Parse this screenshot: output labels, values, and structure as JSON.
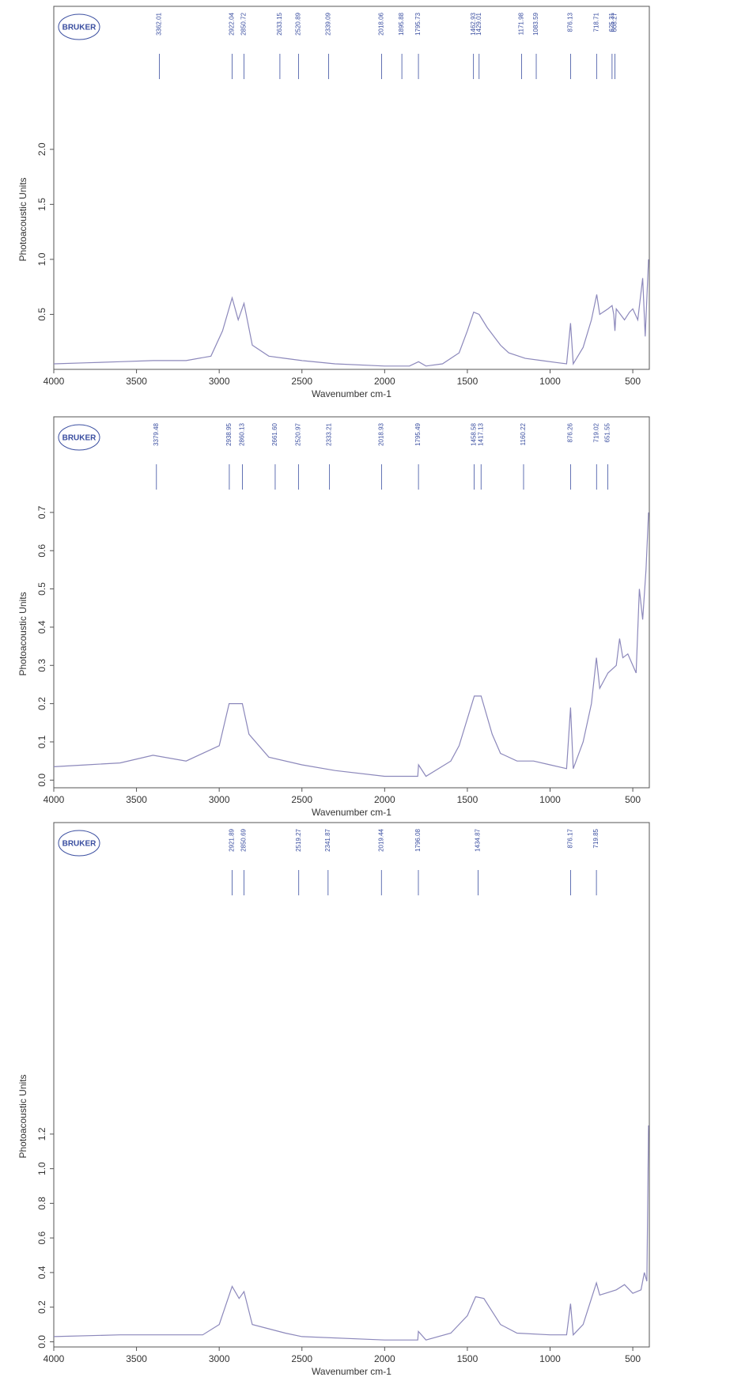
{
  "chart_data": [
    {
      "type": "line",
      "logo": "BRUKER",
      "x_label": "Wavenumber cm-1",
      "y_label": "Photoacoustic Units",
      "color": "#8c88bb",
      "peak_color": "#3a4ea0",
      "xlim": [
        4000,
        400
      ],
      "xticks": [
        4000,
        3500,
        3000,
        2500,
        2000,
        1500,
        1000,
        500
      ],
      "ylim": [
        0,
        3.3
      ],
      "yticks": [
        0.5,
        {
          "value": 1,
          "label": "1.0"
        },
        1.5,
        {
          "value": 2,
          "label": "2.0"
        }
      ],
      "peaks": [
        3362.01,
        2922.04,
        2850.72,
        2633.15,
        2520.89,
        2339.09,
        2018.06,
        1895.88,
        1795.73,
        1462.93,
        1429.01,
        1171.98,
        1083.59,
        876.13,
        718.71,
        625.31,
        608.27
      ],
      "x": [
        4000,
        3800,
        3600,
        3400,
        3200,
        3050,
        2980,
        2922,
        2885,
        2850,
        2800,
        2700,
        2600,
        2500,
        2300,
        2000,
        1850,
        1795,
        1750,
        1650,
        1550,
        1500,
        1462,
        1429,
        1380,
        1300,
        1250,
        1150,
        1050,
        950,
        900,
        876,
        860,
        800,
        750,
        718,
        700,
        650,
        625,
        615,
        608,
        600,
        550,
        520,
        500,
        470,
        440,
        425,
        405
      ],
      "values": [
        0.05,
        0.06,
        0.07,
        0.08,
        0.08,
        0.12,
        0.35,
        0.65,
        0.45,
        0.6,
        0.22,
        0.12,
        0.1,
        0.08,
        0.05,
        0.03,
        0.03,
        0.07,
        0.03,
        0.05,
        0.15,
        0.35,
        0.52,
        0.5,
        0.38,
        0.22,
        0.15,
        0.1,
        0.08,
        0.06,
        0.05,
        0.42,
        0.05,
        0.2,
        0.45,
        0.68,
        0.5,
        0.55,
        0.58,
        0.5,
        0.35,
        0.55,
        0.45,
        0.52,
        0.55,
        0.45,
        0.83,
        0.3,
        1.0
      ]
    },
    {
      "type": "line",
      "logo": "BRUKER",
      "x_label": "Wavenumber cm-1",
      "y_label": "Photoacoustic Units",
      "color": "#8c88bb",
      "peak_color": "#3a4ea0",
      "xlim": [
        4000,
        400
      ],
      "xticks": [
        4000,
        3500,
        3000,
        2500,
        2000,
        1500,
        1000,
        500
      ],
      "ylim": [
        -0.02,
        0.95
      ],
      "yticks": [
        {
          "value": 0,
          "label": "0.0"
        },
        0.1,
        0.2,
        0.3,
        0.4,
        0.5,
        0.6,
        0.7
      ],
      "peaks": [
        3379.48,
        2938.95,
        2860.13,
        {
          "value": 2661.6,
          "label": "2661.60"
        },
        2520.97,
        2333.21,
        2018.93,
        1795.49,
        1458.58,
        1417.13,
        1160.22,
        876.26,
        719.02,
        651.55
      ],
      "x": [
        4000,
        3800,
        3600,
        3400,
        3200,
        3000,
        2940,
        2860,
        2820,
        2700,
        2500,
        2300,
        2000,
        1800,
        1795,
        1750,
        1600,
        1550,
        1458,
        1417,
        1350,
        1300,
        1200,
        1100,
        1000,
        900,
        876,
        860,
        800,
        750,
        720,
        700,
        650,
        600,
        580,
        560,
        530,
        500,
        480,
        460,
        440,
        420,
        405
      ],
      "values": [
        0.035,
        0.04,
        0.045,
        0.065,
        0.05,
        0.09,
        0.2,
        0.2,
        0.12,
        0.06,
        0.04,
        0.025,
        0.01,
        0.01,
        0.04,
        0.01,
        0.05,
        0.09,
        0.22,
        0.22,
        0.12,
        0.07,
        0.05,
        0.05,
        0.04,
        0.03,
        0.19,
        0.03,
        0.1,
        0.2,
        0.32,
        0.24,
        0.28,
        0.3,
        0.37,
        0.32,
        0.33,
        0.3,
        0.28,
        0.5,
        0.42,
        0.55,
        0.7
      ]
    },
    {
      "type": "line",
      "logo": "BRUKER",
      "x_label": "Wavenumber cm-1",
      "y_label": "Photoacoustic Units",
      "color": "#8c88bb",
      "peak_color": "#3a4ea0",
      "xlim": [
        4000,
        400
      ],
      "xticks": [
        4000,
        3500,
        3000,
        2500,
        2000,
        1500,
        1000,
        500
      ],
      "ylim": [
        -0.03,
        3.0
      ],
      "yticks": [
        {
          "value": 0,
          "label": "0.0"
        },
        0.2,
        0.4,
        0.6,
        0.8,
        {
          "value": 1,
          "label": "1.0"
        },
        1.2
      ],
      "peaks": [
        2921.89,
        2850.69,
        2519.27,
        2341.87,
        2019.44,
        1796.08,
        1434.87,
        876.17,
        719.85
      ],
      "x": [
        4000,
        3600,
        3100,
        3000,
        2922,
        2880,
        2850,
        2800,
        2600,
        2500,
        2000,
        1800,
        1796,
        1750,
        1600,
        1500,
        1450,
        1400,
        1300,
        1200,
        1000,
        900,
        876,
        860,
        800,
        750,
        720,
        700,
        600,
        550,
        500,
        450,
        430,
        415,
        405
      ],
      "values": [
        0.03,
        0.04,
        0.04,
        0.1,
        0.32,
        0.25,
        0.29,
        0.1,
        0.05,
        0.03,
        0.01,
        0.01,
        0.06,
        0.01,
        0.05,
        0.15,
        0.26,
        0.25,
        0.1,
        0.05,
        0.04,
        0.04,
        0.22,
        0.04,
        0.1,
        0.25,
        0.34,
        0.27,
        0.3,
        0.33,
        0.28,
        0.3,
        0.4,
        0.35,
        1.25
      ]
    }
  ]
}
